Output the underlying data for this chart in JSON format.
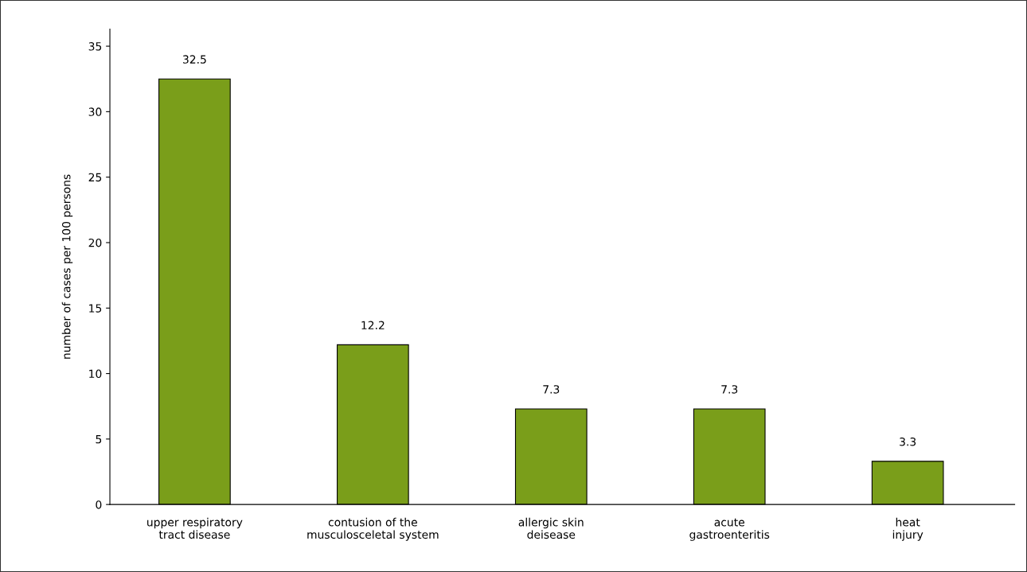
{
  "chart_data": {
    "type": "bar",
    "ylabel": "number of cases per 100 persons",
    "categories": [
      "upper respiratory\ntract disease",
      "contusion of the\nmusculosceletal system",
      "allergic skin\ndeisease",
      "acute\ngastroenteritis",
      "heat\ninjury"
    ],
    "values": [
      32.5,
      12.2,
      7.3,
      7.3,
      3.3
    ],
    "color": "#7a9e1a",
    "ylim": [
      0,
      36.3
    ],
    "yticks": [
      0,
      5,
      10,
      15,
      20,
      25,
      30,
      35
    ],
    "data_labels": true,
    "grid": false,
    "legend": false
  }
}
